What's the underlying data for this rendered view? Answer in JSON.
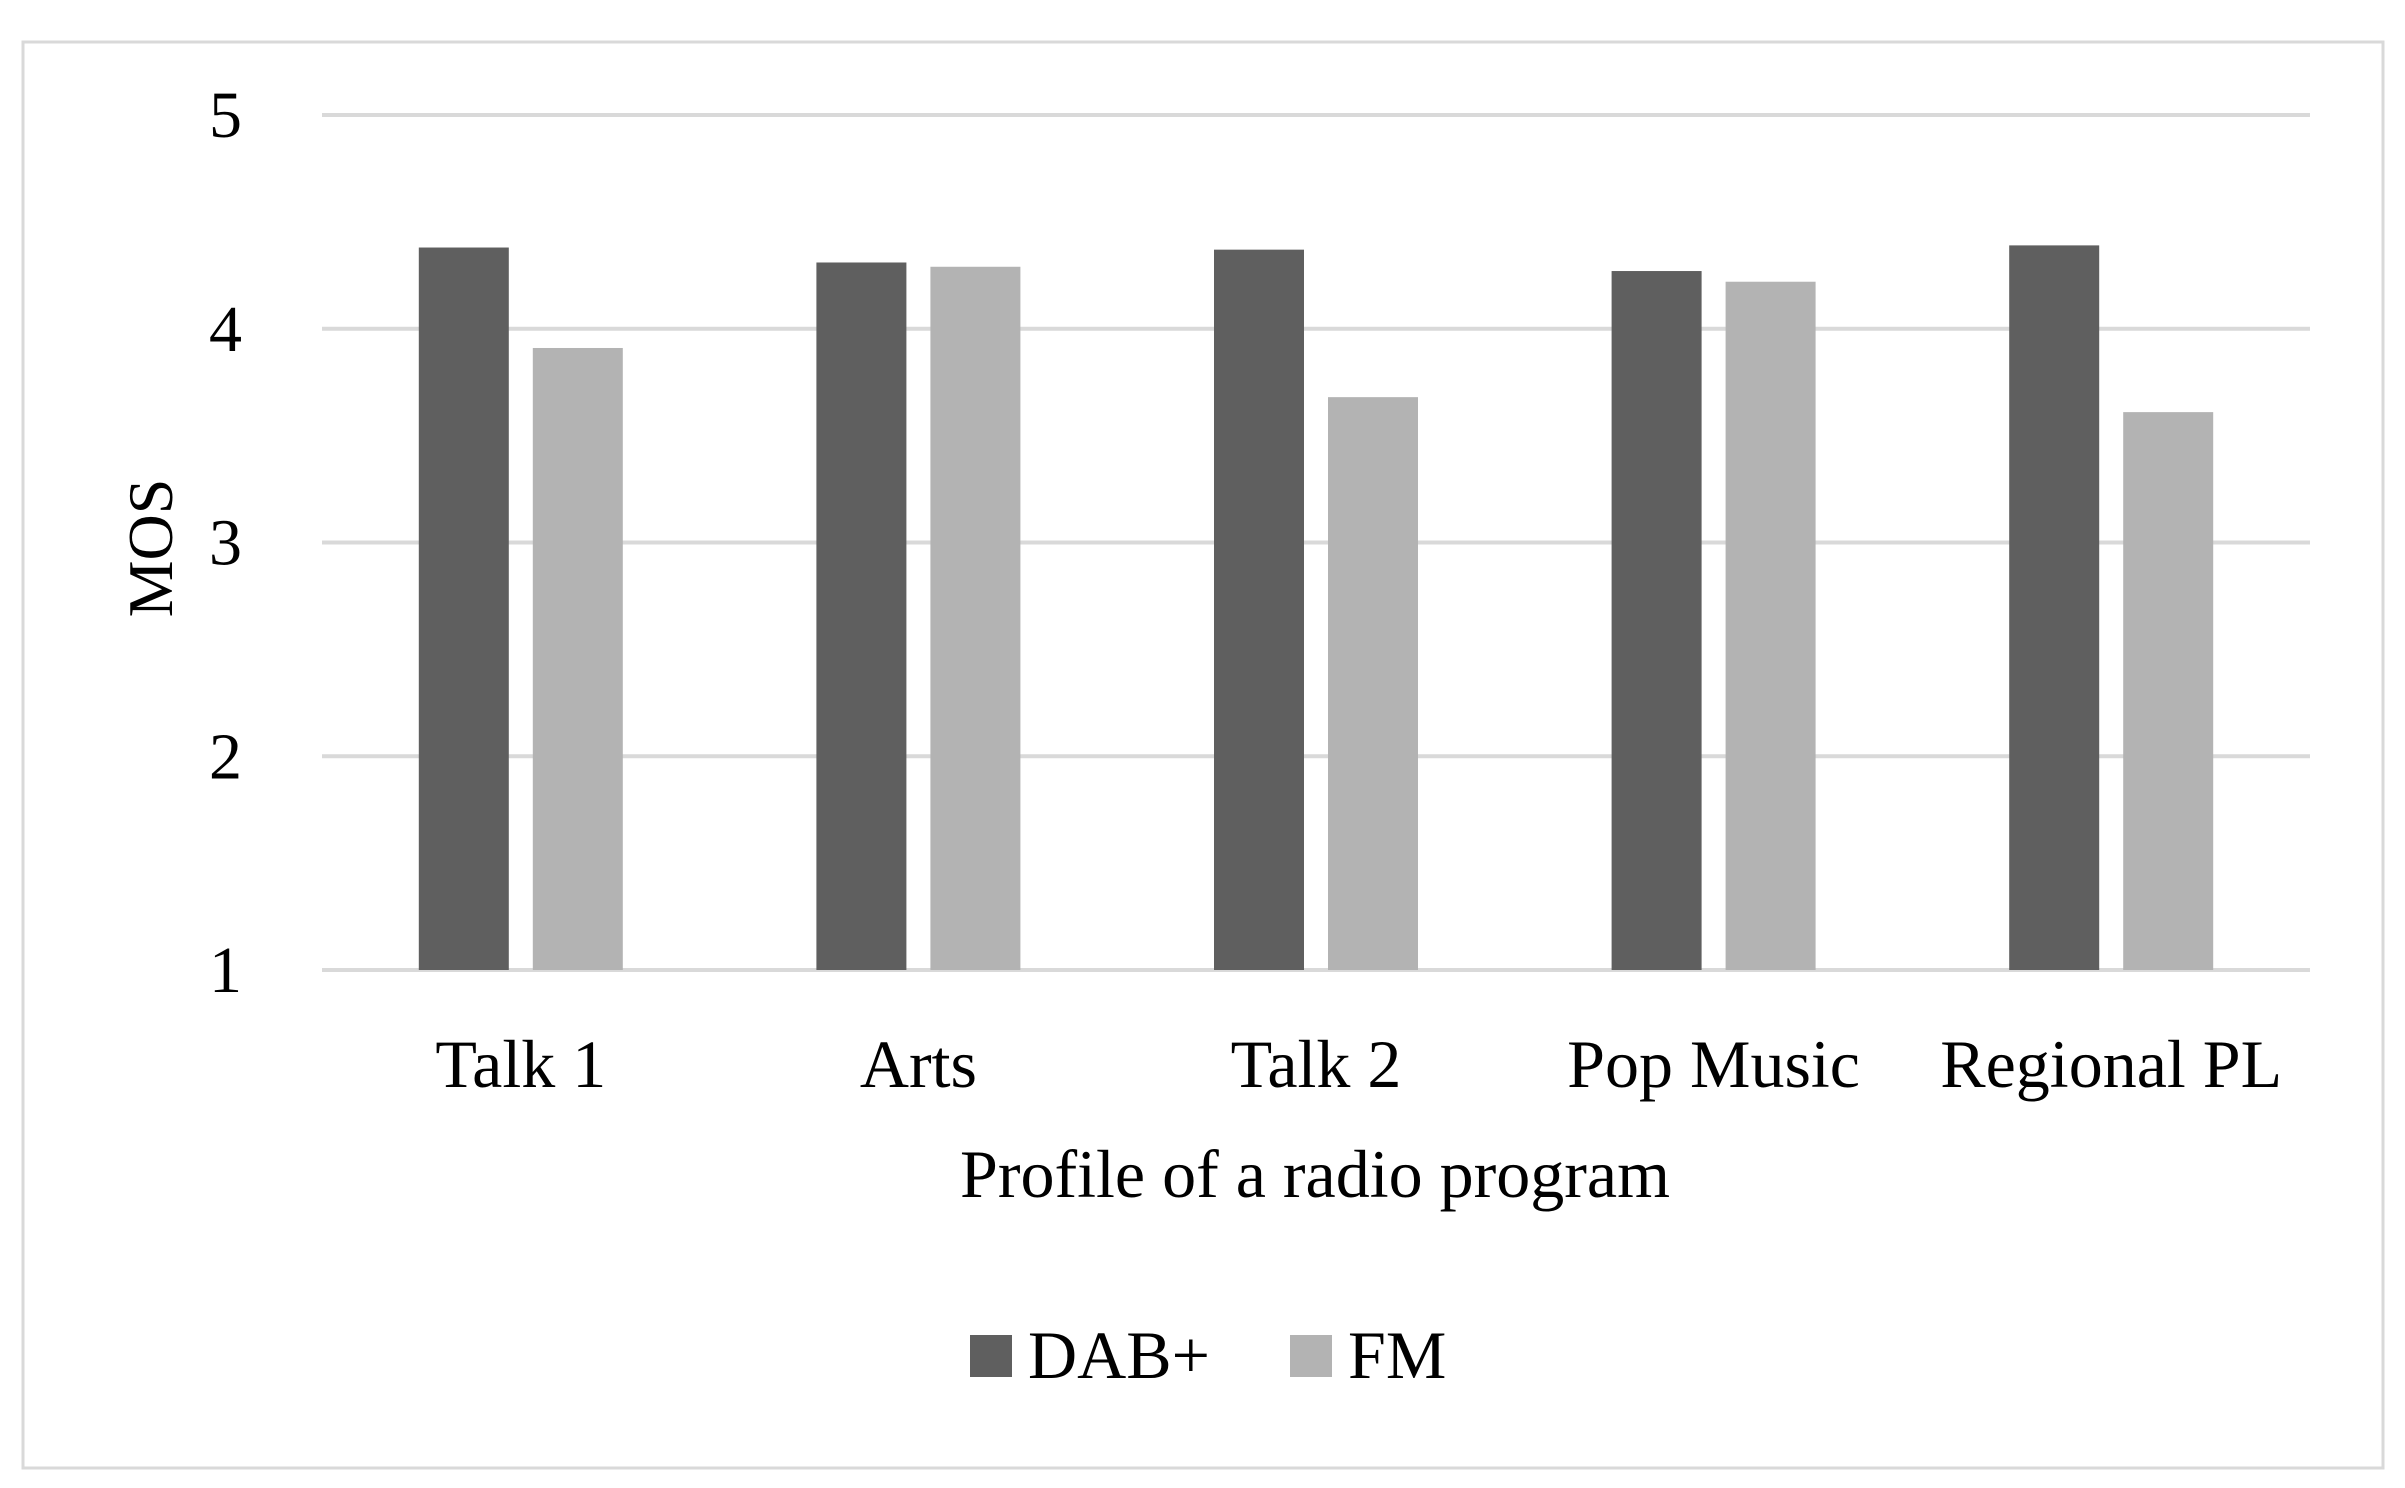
{
  "chart_data": {
    "type": "bar",
    "xlabel": "Profile of a radio program",
    "ylabel": "MOS",
    "ylim": [
      1,
      5
    ],
    "yticks": [
      1,
      2,
      3,
      4,
      5
    ],
    "grid": true,
    "legend_position": "bottom",
    "categories": [
      "Talk 1",
      "Arts",
      "Talk 2",
      "Pop Music",
      "Regional PL"
    ],
    "series": [
      {
        "name": "DAB+",
        "color": "#5f5f5f",
        "values": [
          4.38,
          4.31,
          4.37,
          4.27,
          4.39
        ]
      },
      {
        "name": "FM",
        "color": "#b3b3b3",
        "values": [
          3.91,
          4.29,
          3.68,
          4.22,
          3.61
        ]
      }
    ]
  }
}
